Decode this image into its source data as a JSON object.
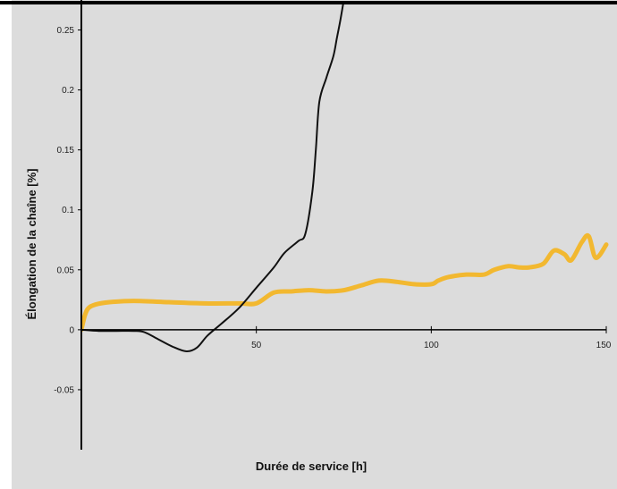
{
  "chart_data": {
    "type": "line",
    "title": "",
    "xlabel": "Durée de service [h]",
    "ylabel": "Élongation de la chaîne [%]",
    "xlim": [
      0,
      150
    ],
    "ylim": [
      -0.1,
      0.275
    ],
    "x_ticks": [
      "50",
      "100",
      "150"
    ],
    "x_tick_values": [
      50,
      100,
      150
    ],
    "y_ticks": [
      "0.25",
      "0.2",
      "0.15",
      "0.1",
      "0.05",
      "0",
      "-0.05"
    ],
    "y_tick_values": [
      0.25,
      0.2,
      0.15,
      0.1,
      0.05,
      0,
      -0.05
    ],
    "grid": false,
    "legend": "none",
    "background_color": "#dcdcdc",
    "series": [
      {
        "color": "#111111",
        "x": [
          0,
          5,
          10,
          15,
          18,
          22,
          26,
          30,
          33,
          36,
          40,
          45,
          50,
          55,
          58,
          62,
          64,
          66,
          67,
          68,
          70,
          72,
          73,
          74,
          75
        ],
        "y": [
          0,
          -0.001,
          -0.001,
          -0.001,
          -0.002,
          -0.008,
          -0.014,
          -0.018,
          -0.015,
          -0.005,
          0.005,
          0.018,
          0.035,
          0.052,
          0.064,
          0.074,
          0.08,
          0.115,
          0.15,
          0.19,
          0.21,
          0.228,
          0.243,
          0.258,
          0.275
        ]
      },
      {
        "color": "#f2b830",
        "x": [
          0,
          1,
          2,
          4,
          8,
          15,
          25,
          35,
          45,
          50,
          55,
          60,
          65,
          70,
          75,
          80,
          85,
          90,
          95,
          100,
          102,
          105,
          110,
          115,
          118,
          122,
          125,
          128,
          132,
          135,
          138,
          140,
          143,
          145,
          147,
          150
        ],
        "y": [
          0,
          0.012,
          0.018,
          0.021,
          0.023,
          0.024,
          0.023,
          0.022,
          0.022,
          0.022,
          0.031,
          0.032,
          0.033,
          0.032,
          0.033,
          0.037,
          0.041,
          0.04,
          0.038,
          0.038,
          0.041,
          0.044,
          0.046,
          0.046,
          0.05,
          0.053,
          0.052,
          0.052,
          0.055,
          0.066,
          0.063,
          0.058,
          0.073,
          0.078,
          0.06,
          0.071
        ]
      }
    ]
  }
}
